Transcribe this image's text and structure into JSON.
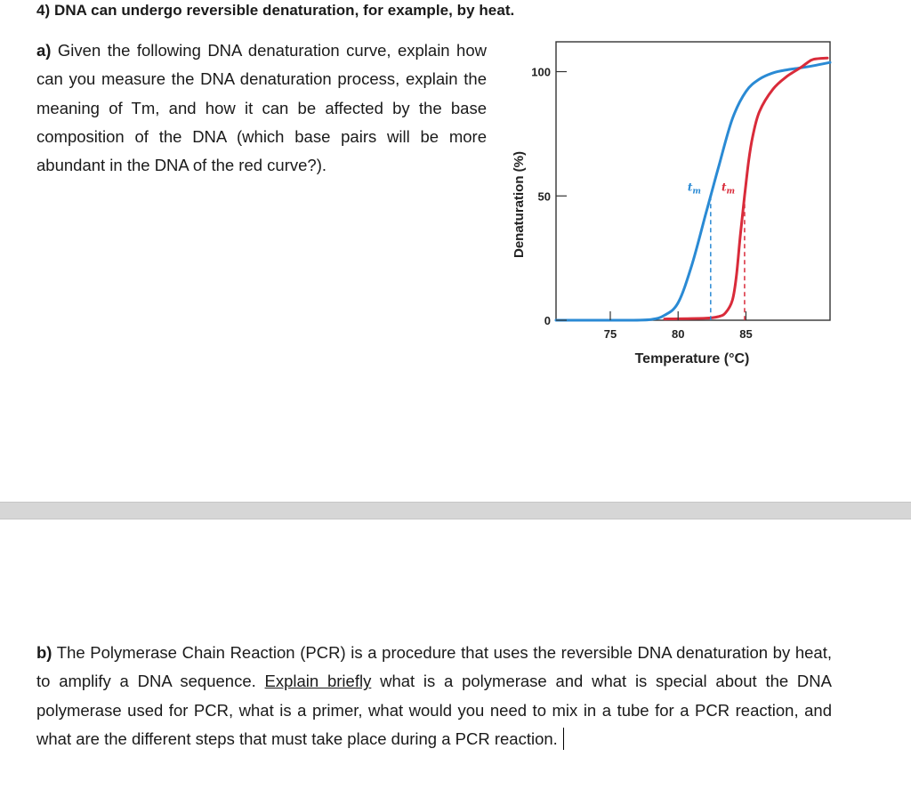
{
  "question": {
    "title": "4) DNA can undergo reversible denaturation, for example, by heat.",
    "part_a": {
      "label": "a)",
      "text": " Given the following DNA denaturation curve, explain how can you measure the DNA denaturation process, explain the meaning of Tm, and how it can be affected by the base composition of the DNA (which base pairs will be more abundant in the DNA of the red curve?)."
    },
    "part_b": {
      "label": "b)",
      "text_before": " The Polymerase Chain Reaction (PCR) is a procedure that uses the reversible DNA denaturation by heat, to amplify a DNA sequence. ",
      "underlined": "Explain briefly",
      "text_after": " what is a polymerase and what is special about the DNA polymerase used for PCR, what is a primer, what would you need to mix in a tube for a PCR reaction, and what are the different steps that must take place during a PCR reaction."
    }
  },
  "chart_data": {
    "type": "line",
    "xlabel": "Temperature (°C)",
    "ylabel": "Denaturation (%)",
    "xlim": [
      71,
      91.2
    ],
    "ylim": [
      0,
      112
    ],
    "x_ticks": [
      75,
      80,
      85
    ],
    "y_ticks": [
      0,
      50,
      100
    ],
    "grid": false,
    "annotations": [
      {
        "text": "t",
        "subscript": "m",
        "x": 82.4,
        "series": "blue"
      },
      {
        "text": "t",
        "subscript": "m",
        "x": 84.9,
        "series": "red"
      }
    ],
    "series": [
      {
        "color": "#2a8ad4",
        "x": [
          71,
          74,
          76,
          78,
          79,
          80,
          81,
          82,
          82.4,
          83,
          84,
          85,
          86,
          87,
          88,
          89,
          90,
          91.2
        ],
        "y": [
          0,
          0,
          0,
          0.3,
          2,
          7,
          22,
          42,
          50,
          62,
          81,
          92,
          97,
          99.5,
          100.7,
          101.5,
          102.4,
          103.7
        ]
      },
      {
        "color": "#d92b3a",
        "x": [
          79,
          82,
          83,
          83.5,
          84,
          84.3,
          84.6,
          84.9,
          85.2,
          85.5,
          86,
          87,
          88,
          89,
          89.5,
          90,
          91
        ],
        "y": [
          0.5,
          0.8,
          1.5,
          3,
          8,
          18,
          35,
          50,
          64,
          74,
          84,
          93,
          98,
          101.5,
          103.5,
          105,
          105.5
        ]
      }
    ]
  }
}
